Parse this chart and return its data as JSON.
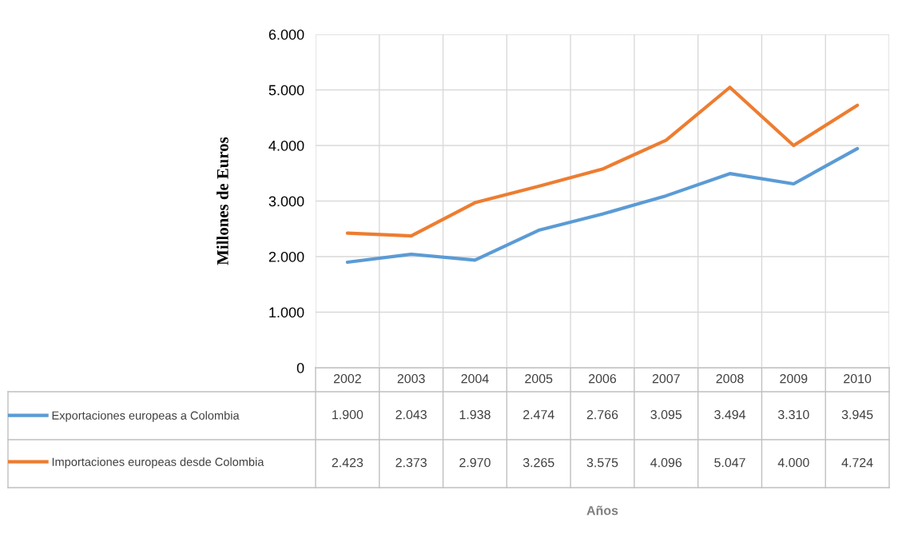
{
  "chart_data": {
    "type": "line",
    "ylabel": "Millones de Euros",
    "annotations": [
      "Años"
    ],
    "categories": [
      "2002",
      "2003",
      "2004",
      "2005",
      "2006",
      "2007",
      "2008",
      "2009",
      "2010"
    ],
    "series": [
      {
        "name": "Exportaciones europeas a Colombia",
        "color": "#5b9bd5",
        "values": [
          1900,
          2043,
          1938,
          2474,
          2766,
          3095,
          3494,
          3310,
          3945
        ],
        "value_labels": [
          "1.900",
          "2.043",
          "1.938",
          "2.474",
          "2.766",
          "3.095",
          "3.494",
          "3.310",
          "3.945"
        ]
      },
      {
        "name": "Importaciones europeas desde Colombia",
        "color": "#ed7d31",
        "values": [
          2423,
          2373,
          2970,
          3265,
          3575,
          4096,
          5047,
          4000,
          4724
        ],
        "value_labels": [
          "2.423",
          "2.373",
          "2.970",
          "3.265",
          "3.575",
          "4.096",
          "5.047",
          "4.000",
          "4.724"
        ]
      }
    ],
    "ylim": [
      0,
      6000
    ],
    "yticks": [
      {
        "value": 0,
        "label": "0"
      },
      {
        "value": 1000,
        "label": "1.000"
      },
      {
        "value": 2000,
        "label": "2.000"
      },
      {
        "value": 3000,
        "label": "3.000"
      },
      {
        "value": 4000,
        "label": "4.000"
      },
      {
        "value": 5000,
        "label": "5.000"
      },
      {
        "value": 6000,
        "label": "6.000"
      }
    ],
    "grid": true,
    "legend": "bottom",
    "marker": "none",
    "line_style": "solid"
  }
}
